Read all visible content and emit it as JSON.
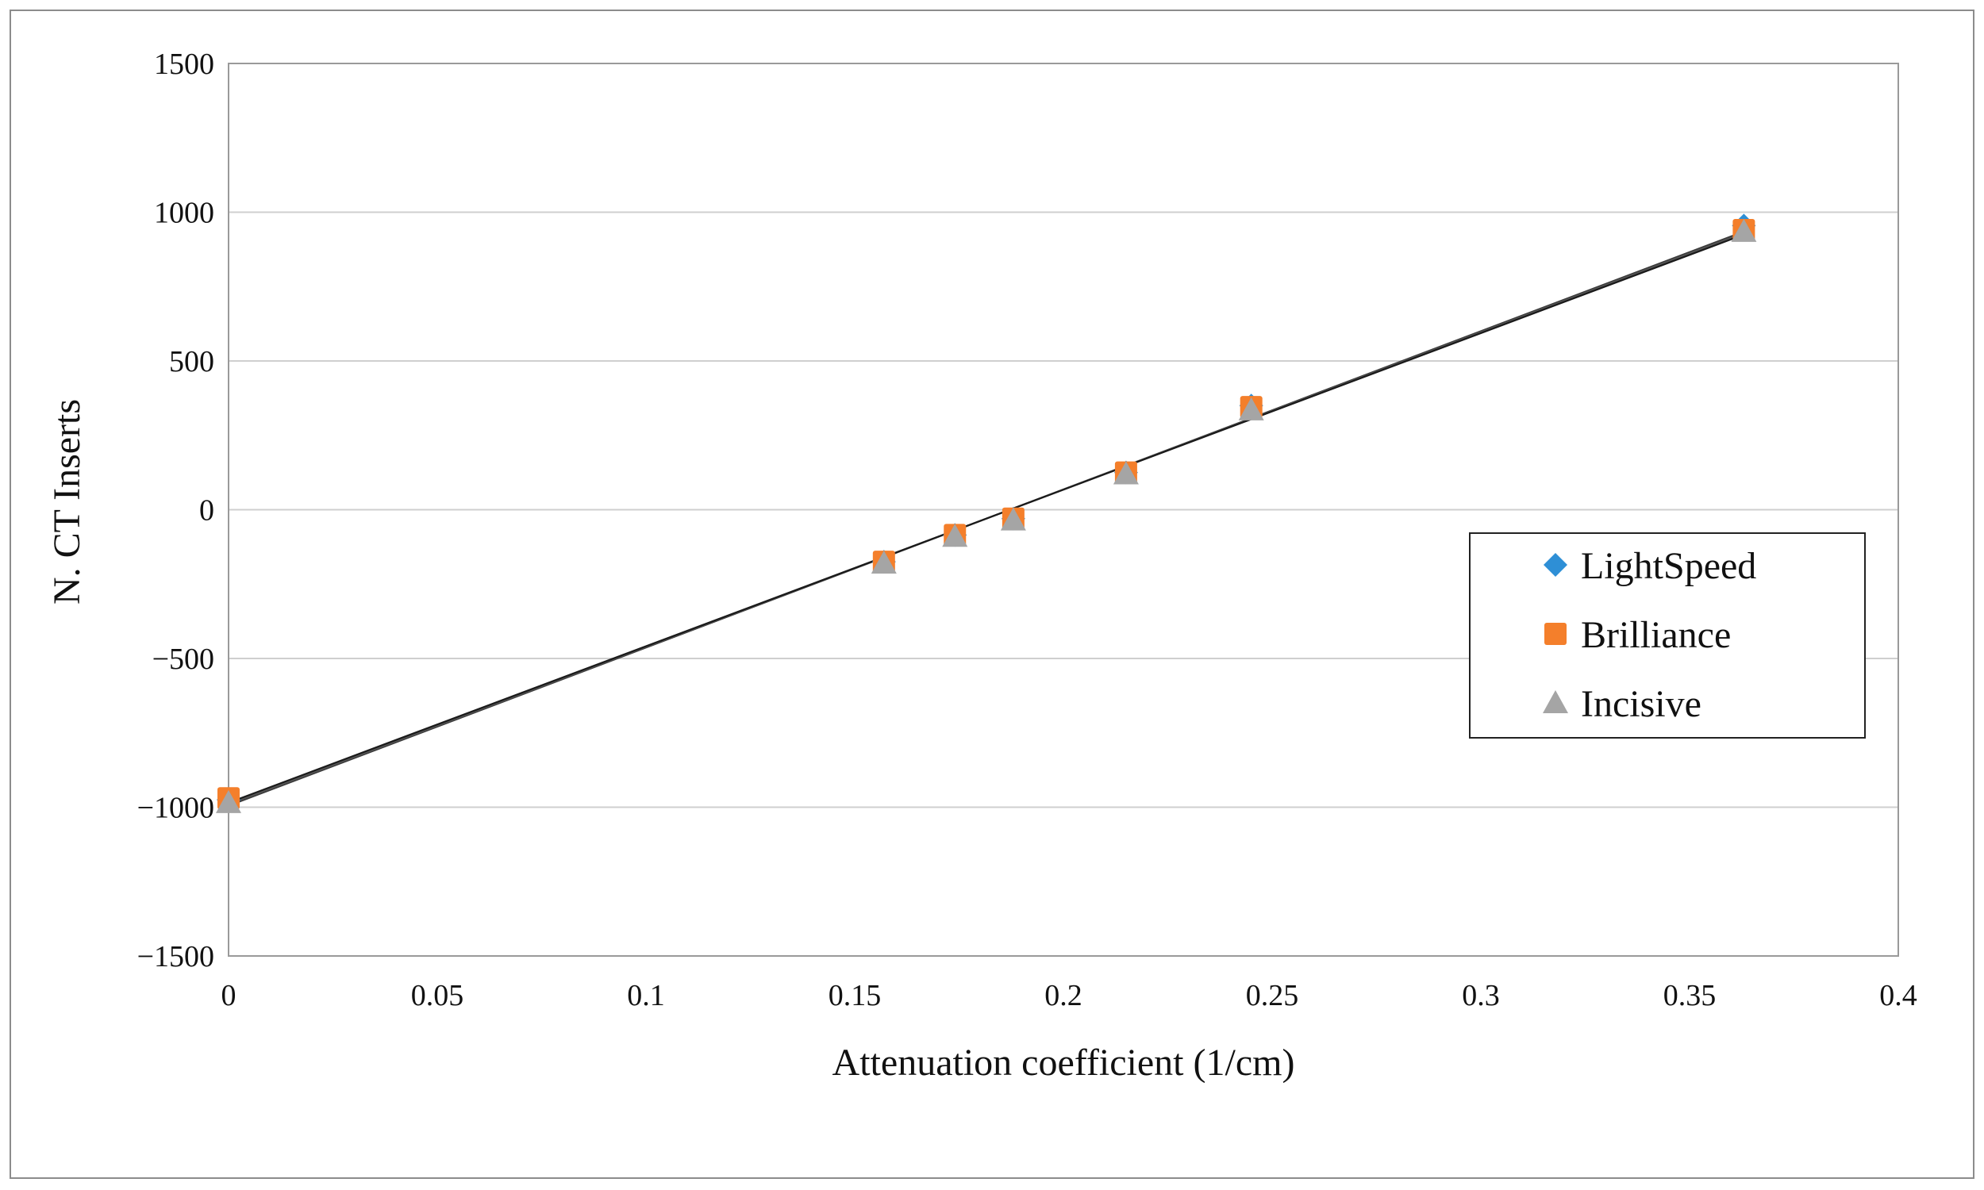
{
  "chart_data": {
    "type": "scatter",
    "title": "",
    "xlabel": "Attenuation coefficient (1/cm)",
    "ylabel": "N. CT Inserts",
    "xlim": [
      0,
      0.4
    ],
    "ylim": [
      -1500,
      1500
    ],
    "x_ticks": [
      0,
      0.05,
      0.1,
      0.15,
      0.2,
      0.25,
      0.3,
      0.35,
      0.4
    ],
    "x_tick_labels": [
      "0",
      "0.05",
      "0.1",
      "0.15",
      "0.2",
      "0.25",
      "0.3",
      "0.35",
      "0.4"
    ],
    "y_ticks": [
      -1500,
      -1000,
      -500,
      0,
      500,
      1000,
      1500
    ],
    "y_tick_labels": [
      "−1500",
      "−1000",
      "−500",
      "0",
      "500",
      "1000",
      "1500"
    ],
    "grid": "horizontal",
    "legend_position": "right",
    "series": [
      {
        "name": "LightSpeed",
        "marker": "diamond",
        "color": "#2e8fd6",
        "x": [
          0,
          0.157,
          0.174,
          0.188,
          0.215,
          0.245,
          0.363
        ],
        "y": [
          -975,
          -175,
          -85,
          -30,
          125,
          350,
          955
        ],
        "trend": {
          "x": [
            0,
            0.363
          ],
          "y": [
            -995,
            935
          ]
        }
      },
      {
        "name": "Brilliance",
        "marker": "square",
        "color": "#f47f2b",
        "x": [
          0,
          0.157,
          0.174,
          0.188,
          0.215,
          0.245,
          0.363
        ],
        "y": [
          -970,
          -175,
          -85,
          -30,
          125,
          345,
          940
        ],
        "trend": {
          "x": [
            0,
            0.363
          ],
          "y": [
            -990,
            930
          ]
        }
      },
      {
        "name": "Incisive",
        "marker": "triangle",
        "color": "#a5a5a5",
        "x": [
          0,
          0.157,
          0.174,
          0.188,
          0.215,
          0.245,
          0.363
        ],
        "y": [
          -985,
          -180,
          -90,
          -35,
          120,
          335,
          935
        ],
        "trend": {
          "x": [
            0,
            0.363
          ],
          "y": [
            -985,
            925
          ]
        }
      }
    ]
  }
}
